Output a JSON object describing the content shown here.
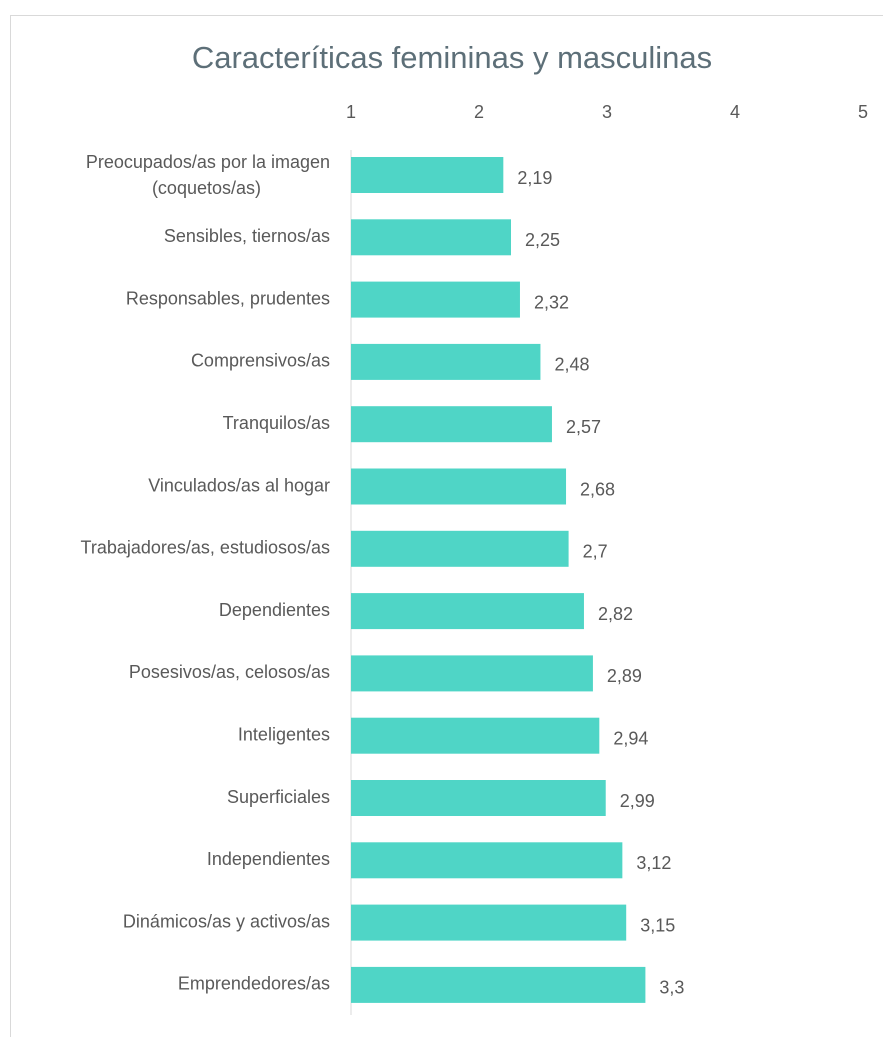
{
  "chart_data": {
    "type": "barh",
    "title": "Caracteríticas femininas y masculinas",
    "categories": [
      "Preocupados/as por la imagen (coquetos/as)",
      "Sensibles, tiernos/as",
      "Responsables, prudentes",
      "Comprensivos/as",
      "Tranquilos/as",
      "Vinculados/as al hogar",
      "Trabajadores/as, estudiosos/as",
      "Dependientes",
      "Posesivos/as, celosos/as",
      "Inteligentes",
      "Superficiales",
      "Independientes",
      "Dinámicos/as y activos/as",
      "Emprendedores/as"
    ],
    "values": [
      2.19,
      2.25,
      2.32,
      2.48,
      2.57,
      2.68,
      2.7,
      2.82,
      2.89,
      2.94,
      2.99,
      3.12,
      3.15,
      3.3
    ],
    "value_labels": [
      "2,19",
      "2,25",
      "2,32",
      "2,48",
      "2,57",
      "2,68",
      "2,7",
      "2,82",
      "2,89",
      "2,94",
      "2,99",
      "3,12",
      "3,15",
      "3,3"
    ],
    "color": "#4fd5c6",
    "xlim": [
      1,
      5
    ],
    "xticks": [
      1,
      2,
      3,
      4,
      5
    ]
  }
}
